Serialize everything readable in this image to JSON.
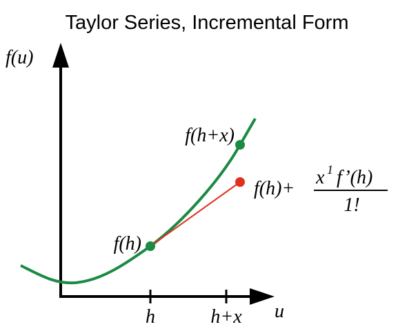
{
  "title": "Taylor Series, Incremental Form",
  "axes": {
    "y_label": "f(u)",
    "x_label": "u",
    "x_ticks": [
      "h",
      "h+x"
    ]
  },
  "points": {
    "lower": "f(h)",
    "upper": "f(h+x)"
  },
  "approximation": {
    "prefix": "f(h)+",
    "numerator_base": "x",
    "numerator_exponent": "1",
    "numerator_derivative": "f’(h)",
    "denominator": "1!"
  }
}
